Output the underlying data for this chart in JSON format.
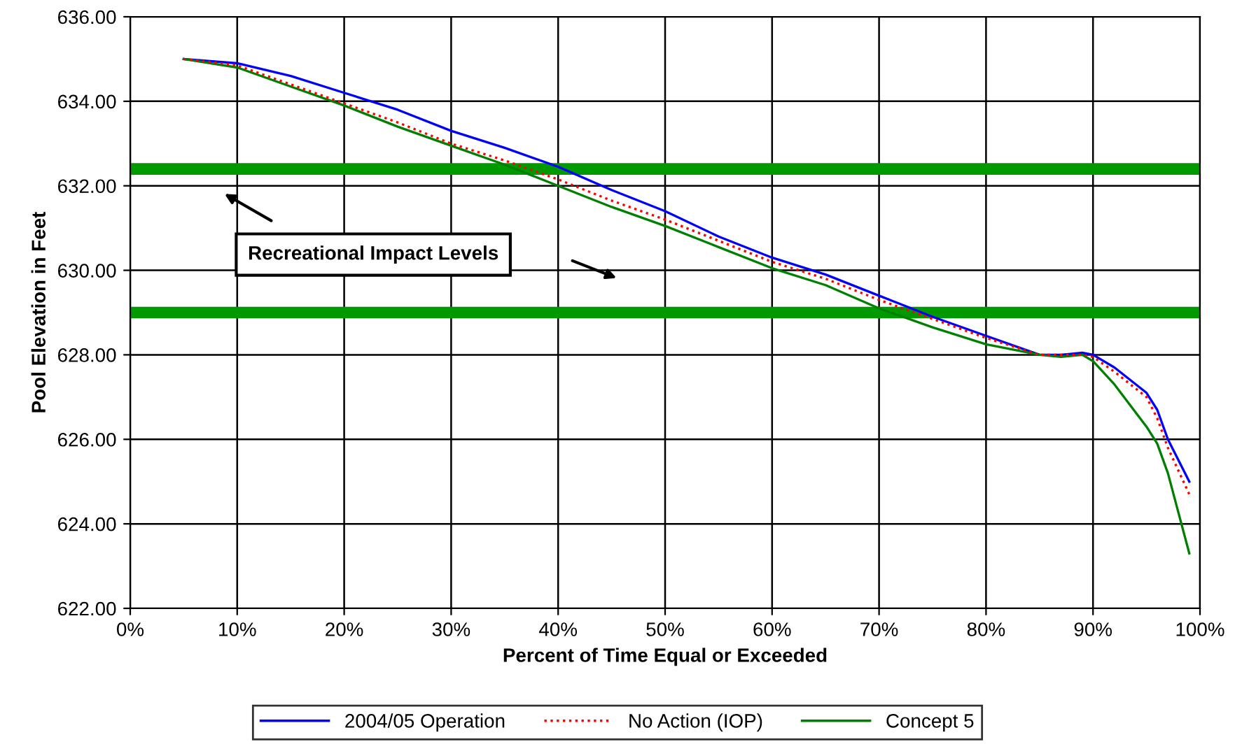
{
  "chart_data": {
    "type": "line",
    "xlabel": "Percent of Time Equal or Exceeded",
    "ylabel": "Pool Elevation in Feet",
    "xlim": [
      0,
      100
    ],
    "ylim": [
      622,
      636
    ],
    "xticks": [
      {
        "value": 0,
        "label": "0%"
      },
      {
        "value": 10,
        "label": "10%"
      },
      {
        "value": 20,
        "label": "20%"
      },
      {
        "value": 30,
        "label": "30%"
      },
      {
        "value": 40,
        "label": "40%"
      },
      {
        "value": 50,
        "label": "50%"
      },
      {
        "value": 60,
        "label": "60%"
      },
      {
        "value": 70,
        "label": "70%"
      },
      {
        "value": 80,
        "label": "80%"
      },
      {
        "value": 90,
        "label": "90%"
      },
      {
        "value": 100,
        "label": "100%"
      }
    ],
    "yticks": [
      {
        "value": 622,
        "label": "622.00"
      },
      {
        "value": 624,
        "label": "624.00"
      },
      {
        "value": 626,
        "label": "626.00"
      },
      {
        "value": 628,
        "label": "628.00"
      },
      {
        "value": 630,
        "label": "630.00"
      },
      {
        "value": 632,
        "label": "632.00"
      },
      {
        "value": 634,
        "label": "634.00"
      },
      {
        "value": 636,
        "label": "636.00"
      }
    ],
    "x": [
      5,
      10,
      15,
      20,
      25,
      30,
      35,
      40,
      45,
      50,
      55,
      60,
      65,
      70,
      75,
      80,
      85,
      87,
      89,
      90,
      92,
      95,
      96,
      97,
      99
    ],
    "series": [
      {
        "name": "2004/05 Operation",
        "color": "#0000ff",
        "line_style": "solid",
        "values": [
          635.0,
          634.9,
          634.6,
          634.2,
          633.8,
          633.3,
          632.9,
          632.45,
          631.9,
          631.4,
          630.8,
          630.3,
          629.9,
          629.4,
          628.9,
          628.45,
          628.0,
          628.0,
          628.05,
          628.0,
          627.7,
          627.1,
          626.7,
          626.0,
          625.0
        ]
      },
      {
        "name": "No Action (IOP)",
        "color": "#ff0000",
        "line_style": "dotted",
        "values": [
          635.0,
          634.85,
          634.4,
          633.95,
          633.5,
          633.0,
          632.6,
          632.15,
          631.65,
          631.2,
          630.7,
          630.2,
          629.8,
          629.3,
          628.85,
          628.4,
          628.0,
          628.0,
          628.0,
          627.95,
          627.6,
          627.0,
          626.5,
          625.8,
          624.7
        ]
      },
      {
        "name": "Concept 5",
        "color": "#008000",
        "line_style": "solid",
        "values": [
          635.0,
          634.8,
          634.35,
          633.9,
          633.4,
          632.95,
          632.5,
          632.0,
          631.5,
          631.05,
          630.55,
          630.05,
          629.65,
          629.1,
          628.65,
          628.25,
          628.0,
          627.95,
          628.0,
          627.85,
          627.3,
          626.3,
          625.9,
          625.2,
          623.3
        ]
      }
    ],
    "ref_lines": [
      {
        "axis": "y",
        "value": 632.4,
        "color": "#009900"
      },
      {
        "axis": "y",
        "value": 629.0,
        "color": "#009900"
      }
    ],
    "annotations": [
      {
        "text": "Recreational Impact Levels"
      }
    ],
    "grid": true,
    "legend": "bottom",
    "marker": "none"
  }
}
